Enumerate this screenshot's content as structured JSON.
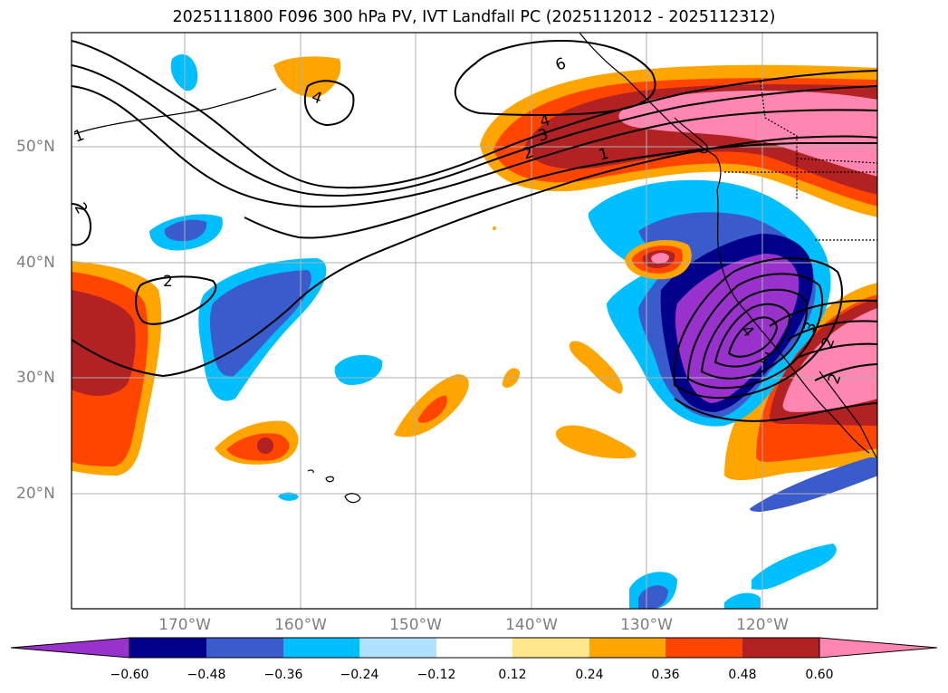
{
  "title": "2025111800 F096 300 hPa PV, IVT Landfall PC (2025112012 - 2025112312)",
  "lat_labels": [
    "50°N",
    "40°N",
    "30°N",
    "20°N"
  ],
  "lon_labels": [
    "170°W",
    "160°W",
    "150°W",
    "140°W",
    "130°W",
    "120°W"
  ],
  "contour_labels": [
    "1",
    "2",
    "2",
    "4",
    "4",
    "3",
    "2",
    "1",
    "6",
    "4",
    "3",
    "2",
    "1",
    "2"
  ],
  "colorbar": {
    "ticks": [
      "−0.60",
      "−0.48",
      "−0.36",
      "−0.24",
      "−0.12",
      "0.12",
      "0.24",
      "0.36",
      "0.48",
      "0.60"
    ],
    "colors": [
      "#9932cc",
      "#00008b",
      "#3a5bcc",
      "#00bfff",
      "#b0e2ff",
      "#ffffff",
      "#ffe88c",
      "#ffa500",
      "#ff4500",
      "#b22222",
      "#ff86b0"
    ]
  },
  "colors": {
    "land": "#ffffff",
    "coast": "#000000",
    "grid": "#b0b0b0"
  }
}
